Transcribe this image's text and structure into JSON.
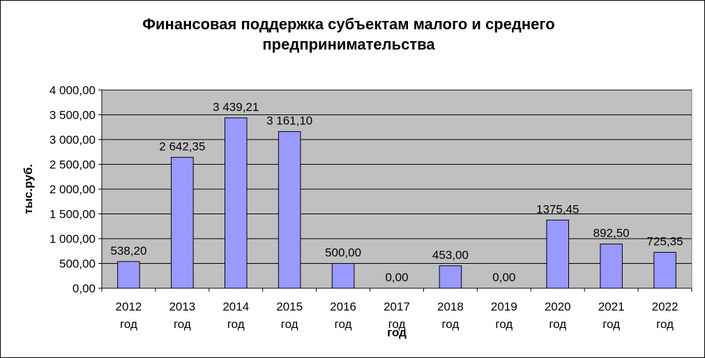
{
  "chart_data": {
    "type": "bar",
    "title": "Финансовая поддержка субъектам малого и среднего предпринимательства",
    "xlabel": "год",
    "ylabel": "тыс.руб.",
    "ylim": [
      0,
      4000
    ],
    "yticks": [
      "0,00",
      "500,00",
      "1 000,00",
      "1 500,00",
      "2 000,00",
      "2 500,00",
      "3 000,00",
      "3 500,00",
      "4 000,00"
    ],
    "categories": [
      [
        "2012",
        "год"
      ],
      [
        "2013",
        "год"
      ],
      [
        "2014",
        "год"
      ],
      [
        "2015",
        "год"
      ],
      [
        "2016",
        "год"
      ],
      [
        "2017",
        "год"
      ],
      [
        "2018",
        "год"
      ],
      [
        "2019",
        "год"
      ],
      [
        "2020",
        "год"
      ],
      [
        "2021",
        "год"
      ],
      [
        "2022",
        "год"
      ]
    ],
    "values": [
      538.2,
      2642.35,
      3439.21,
      3161.1,
      500.0,
      0.0,
      453.0,
      0.0,
      1375.45,
      892.5,
      725.35
    ],
    "data_labels": [
      "538,20",
      "2 642,35",
      "3 439,21",
      "3 161,10",
      "500,00",
      "0,00",
      "453,00",
      "0,00",
      "1375,45",
      "892,50",
      "725,35"
    ],
    "grid": true,
    "legend": "none",
    "colors": {
      "bar": "#9999FF",
      "plot_bg": "#C0C0C0",
      "grid": "#000000"
    }
  }
}
